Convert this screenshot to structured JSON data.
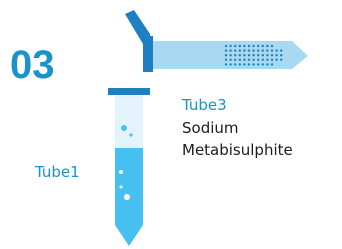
{
  "number": "03",
  "tubes": [
    {
      "label": "Tube1"
    },
    {
      "label": "Tube3",
      "contents": [
        "Sodium",
        "Metabisulphite"
      ]
    }
  ]
}
